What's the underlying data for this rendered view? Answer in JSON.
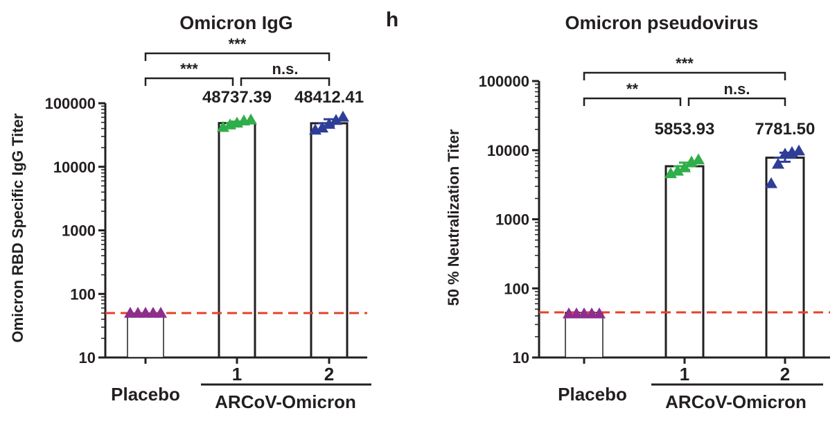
{
  "panel_letter": "h",
  "colors": {
    "axis": "#231f20",
    "threshold": "#e8412c",
    "placebo": "#8e2d8e",
    "dose1": "#2fae4a",
    "dose2": "#2e3e97",
    "bar_fill": "#ffffff"
  },
  "chart_data": [
    {
      "type": "bar",
      "title": "Omicron IgG",
      "ylabel": "Omicron RBD Specific IgG Titer",
      "yscale": "log",
      "ylim": [
        10,
        100000
      ],
      "yticks": [
        "10",
        "100",
        "1000",
        "10000",
        "100000"
      ],
      "threshold": 50,
      "categories": [
        "Placebo",
        "1",
        "2"
      ],
      "group_label": "ARCoV-Omicron",
      "values": [
        50,
        48737.39,
        48412.41
      ],
      "value_labels": [
        "",
        "48737.39",
        "48412.41"
      ],
      "error_sem": [
        null,
        [
          46000,
          51500
        ],
        [
          44000,
          56000
        ]
      ],
      "points": [
        [
          50,
          50,
          50,
          50,
          50
        ],
        [
          42000,
          46000,
          49000,
          53000,
          55000
        ],
        [
          38000,
          41000,
          47000,
          54000,
          61000
        ]
      ],
      "significance": [
        {
          "from": 0,
          "to": 2,
          "label": "***"
        },
        {
          "from": 0,
          "to": 1,
          "label": "***"
        },
        {
          "from": 1,
          "to": 2,
          "label": "n.s."
        }
      ]
    },
    {
      "type": "bar",
      "title": "Omicron pseudovirus",
      "ylabel": "50 % Neutralization Titer",
      "yscale": "log",
      "ylim": [
        10,
        100000
      ],
      "yticks": [
        "10",
        "100",
        "1000",
        "10000",
        "100000"
      ],
      "threshold": 45,
      "categories": [
        "Placebo",
        "1",
        "2"
      ],
      "group_label": "ARCoV-Omicron",
      "values": [
        45,
        5853.93,
        7781.5
      ],
      "value_labels": [
        "",
        "5853.93",
        "7781.50"
      ],
      "error_sem": [
        null,
        [
          5200,
          6600
        ],
        [
          6800,
          9200
        ]
      ],
      "points": [
        [
          43,
          43,
          43,
          43,
          43
        ],
        [
          4600,
          5000,
          5600,
          6800,
          7300
        ],
        [
          3300,
          6300,
          8800,
          9300,
          9800
        ]
      ],
      "significance": [
        {
          "from": 0,
          "to": 2,
          "label": "***"
        },
        {
          "from": 0,
          "to": 1,
          "label": "**"
        },
        {
          "from": 1,
          "to": 2,
          "label": "n.s."
        }
      ]
    }
  ]
}
